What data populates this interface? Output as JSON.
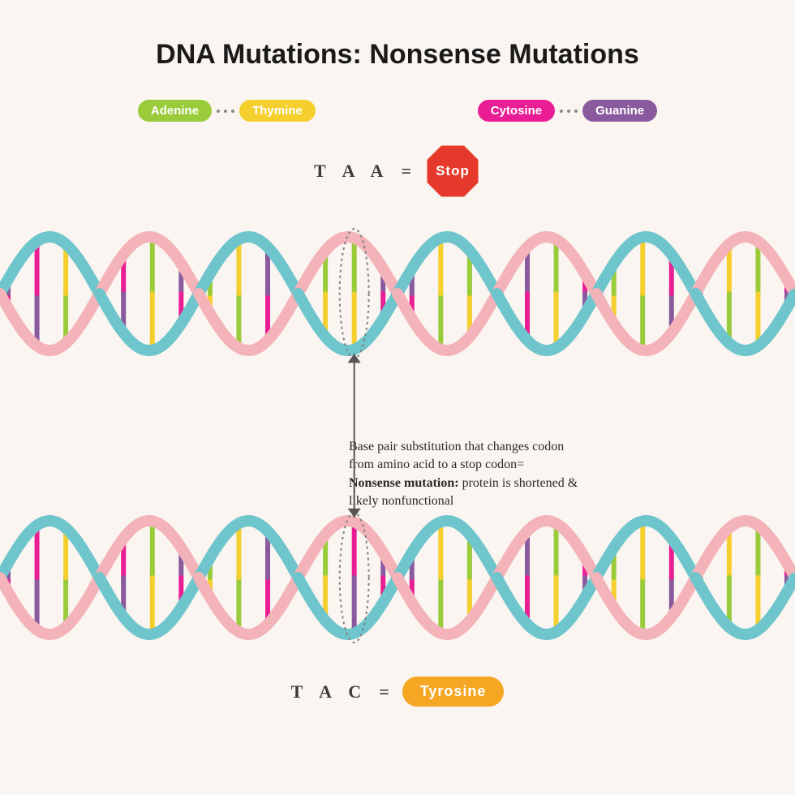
{
  "title": "DNA Mutations: Nonsense Mutations",
  "legend": {
    "adenine": {
      "label": "Adenine",
      "color": "#9acb3a"
    },
    "thymine": {
      "label": "Thymine",
      "color": "#f4cf2e"
    },
    "cytosine": {
      "label": "Cytosine",
      "color": "#e91e95"
    },
    "guanine": {
      "label": "Guanine",
      "color": "#8a5a9e"
    }
  },
  "codon_top": {
    "sequence": "T A A",
    "eq": "=",
    "result_label": "Stop",
    "result_color": "#e53a2b"
  },
  "codon_bottom": {
    "sequence": "T A C",
    "eq": "=",
    "result_label": "Tyrosine",
    "result_color": "#f5a623"
  },
  "description": {
    "line1": "Base pair substitution that changes codon",
    "line2": "from amino acid to a stop codon=",
    "bold": "Nonsense mutation:",
    "line3": " protein is shortened &",
    "line4": "likely nonfunctional"
  },
  "helix": {
    "backbone_color_a": "#f3b3b8",
    "backbone_color_b": "#6fc5cc",
    "stroke_width": 14,
    "periods": 4,
    "amplitude": 70,
    "base_colors": {
      "A": "#9acb3a",
      "T": "#f4cf2e",
      "C": "#e91e95",
      "G": "#8a5a9e"
    },
    "highlight_dash_color": "#808080"
  },
  "top_strand_pairs": [
    [
      "C",
      "G"
    ],
    [
      "G",
      "C"
    ],
    [
      "A",
      "T"
    ],
    [
      "T",
      "A"
    ],
    [
      "C",
      "G"
    ],
    [
      "A",
      "T"
    ],
    [
      "G",
      "C"
    ],
    [
      "T",
      "A"
    ],
    [
      "A",
      "T"
    ],
    [
      "C",
      "G"
    ],
    [
      "T",
      "A"
    ],
    [
      "A",
      "T"
    ],
    [
      "A",
      "T"
    ],
    [
      "G",
      "C"
    ],
    [
      "C",
      "G"
    ],
    [
      "A",
      "T"
    ],
    [
      "T",
      "A"
    ],
    [
      "C",
      "G"
    ],
    [
      "G",
      "C"
    ],
    [
      "A",
      "T"
    ],
    [
      "C",
      "G"
    ],
    [
      "T",
      "A"
    ],
    [
      "A",
      "T"
    ],
    [
      "G",
      "C"
    ],
    [
      "C",
      "G"
    ],
    [
      "T",
      "A"
    ],
    [
      "A",
      "T"
    ],
    [
      "C",
      "G"
    ]
  ],
  "bottom_strand_pairs": [
    [
      "C",
      "G"
    ],
    [
      "G",
      "C"
    ],
    [
      "A",
      "T"
    ],
    [
      "T",
      "A"
    ],
    [
      "C",
      "G"
    ],
    [
      "A",
      "T"
    ],
    [
      "G",
      "C"
    ],
    [
      "T",
      "A"
    ],
    [
      "A",
      "T"
    ],
    [
      "C",
      "G"
    ],
    [
      "T",
      "A"
    ],
    [
      "A",
      "T"
    ],
    [
      "C",
      "G"
    ],
    [
      "G",
      "C"
    ],
    [
      "C",
      "G"
    ],
    [
      "A",
      "T"
    ],
    [
      "T",
      "A"
    ],
    [
      "C",
      "G"
    ],
    [
      "G",
      "C"
    ],
    [
      "A",
      "T"
    ],
    [
      "C",
      "G"
    ],
    [
      "T",
      "A"
    ],
    [
      "A",
      "T"
    ],
    [
      "G",
      "C"
    ],
    [
      "C",
      "G"
    ],
    [
      "T",
      "A"
    ],
    [
      "A",
      "T"
    ],
    [
      "C",
      "G"
    ]
  ],
  "highlight_index": 12
}
